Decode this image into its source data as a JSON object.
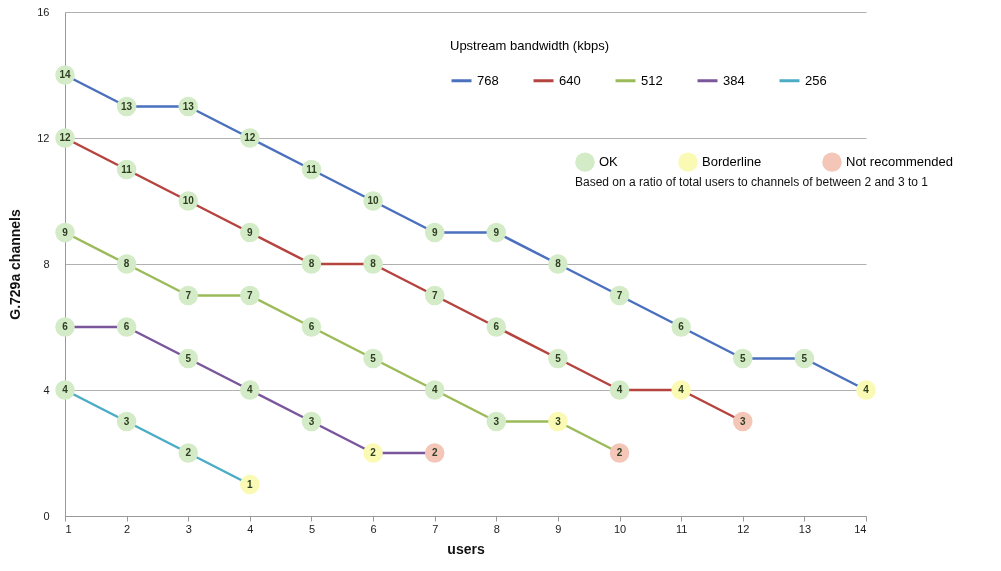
{
  "chart_data": {
    "type": "line",
    "xlabel": "users",
    "ylabel": "G.729a channels",
    "legend_title": "Upstream bandwidth (kbps)",
    "annotations": [
      "Based on a ratio of total users to channels of between 2 and 3 to 1"
    ],
    "xlim": [
      1,
      14
    ],
    "xticks": [
      1,
      2,
      3,
      4,
      5,
      6,
      7,
      8,
      9,
      10,
      11,
      12,
      13,
      14
    ],
    "ylim": [
      0,
      16
    ],
    "yticks": [
      0,
      4,
      8,
      12,
      16
    ],
    "grid": "y",
    "legend": "top right",
    "series": [
      {
        "name": "768",
        "color": "#4a70be",
        "x": [
          1,
          2,
          3,
          4,
          5,
          6,
          7,
          8,
          9,
          10,
          11,
          12,
          13,
          14
        ],
        "values": [
          14,
          13,
          13,
          12,
          11,
          10,
          9,
          9,
          8,
          7,
          6,
          5,
          5,
          4
        ]
      },
      {
        "name": "640",
        "color": "#b5443f",
        "x": [
          1,
          2,
          3,
          4,
          5,
          6,
          7,
          8,
          9,
          10,
          11,
          12
        ],
        "values": [
          12,
          11,
          10,
          9,
          8,
          8,
          7,
          6,
          5,
          4,
          4,
          3
        ]
      },
      {
        "name": "512",
        "color": "#9bbb59",
        "x": [
          1,
          2,
          3,
          4,
          5,
          6,
          7,
          8,
          9,
          10
        ],
        "values": [
          9,
          8,
          7,
          7,
          6,
          5,
          4,
          3,
          3,
          2
        ]
      },
      {
        "name": "384",
        "color": "#7a569b",
        "x": [
          1,
          2,
          3,
          4,
          5,
          6,
          7
        ],
        "values": [
          6,
          6,
          5,
          4,
          3,
          2,
          2
        ]
      },
      {
        "name": "256",
        "color": "#4bacc6",
        "x": [
          1,
          2,
          3,
          4
        ],
        "values": [
          4,
          3,
          2,
          1
        ]
      },
      {
        "name": "OK",
        "type": "scatter",
        "color": "#d3ebc6",
        "x": [
          1,
          2,
          3,
          4,
          5,
          6,
          7,
          8,
          9,
          10,
          11,
          12,
          13,
          1,
          2,
          3,
          4,
          5,
          6,
          7,
          8,
          9,
          10,
          1,
          2,
          3,
          4,
          5,
          6,
          7,
          8,
          1,
          2,
          3,
          4,
          5,
          1,
          2,
          3
        ],
        "values": [
          14,
          13,
          13,
          12,
          11,
          10,
          9,
          9,
          8,
          7,
          6,
          5,
          5,
          12,
          11,
          10,
          9,
          8,
          8,
          7,
          6,
          5,
          4,
          9,
          8,
          7,
          7,
          6,
          5,
          4,
          3,
          6,
          6,
          5,
          4,
          3,
          4,
          3,
          2
        ],
        "value_labels": [
          "14",
          "13",
          "13",
          "12",
          "11",
          "10",
          "9",
          "9",
          "8",
          "7",
          "6",
          "5",
          "5",
          "12",
          "11",
          "10",
          "9",
          "8",
          "8",
          "7",
          "6",
          "5",
          "4",
          "9",
          "8",
          "7",
          "7",
          "6",
          "5",
          "4",
          "3",
          "6",
          "6",
          "5",
          "4",
          "3",
          "4",
          "3",
          "2"
        ]
      },
      {
        "name": "Borderline",
        "type": "scatter",
        "color": "#fafab4",
        "x": [
          14,
          11,
          9,
          6,
          4
        ],
        "values": [
          4,
          4,
          3,
          2,
          1
        ],
        "value_labels": [
          "4",
          "4",
          "3",
          "2",
          "1"
        ]
      },
      {
        "name": "Not recommended",
        "type": "scatter",
        "color": "#f3c6b8",
        "x": [
          12,
          10,
          7
        ],
        "values": [
          3,
          2,
          2
        ],
        "value_labels": [
          "3",
          "2",
          "2"
        ]
      }
    ]
  }
}
